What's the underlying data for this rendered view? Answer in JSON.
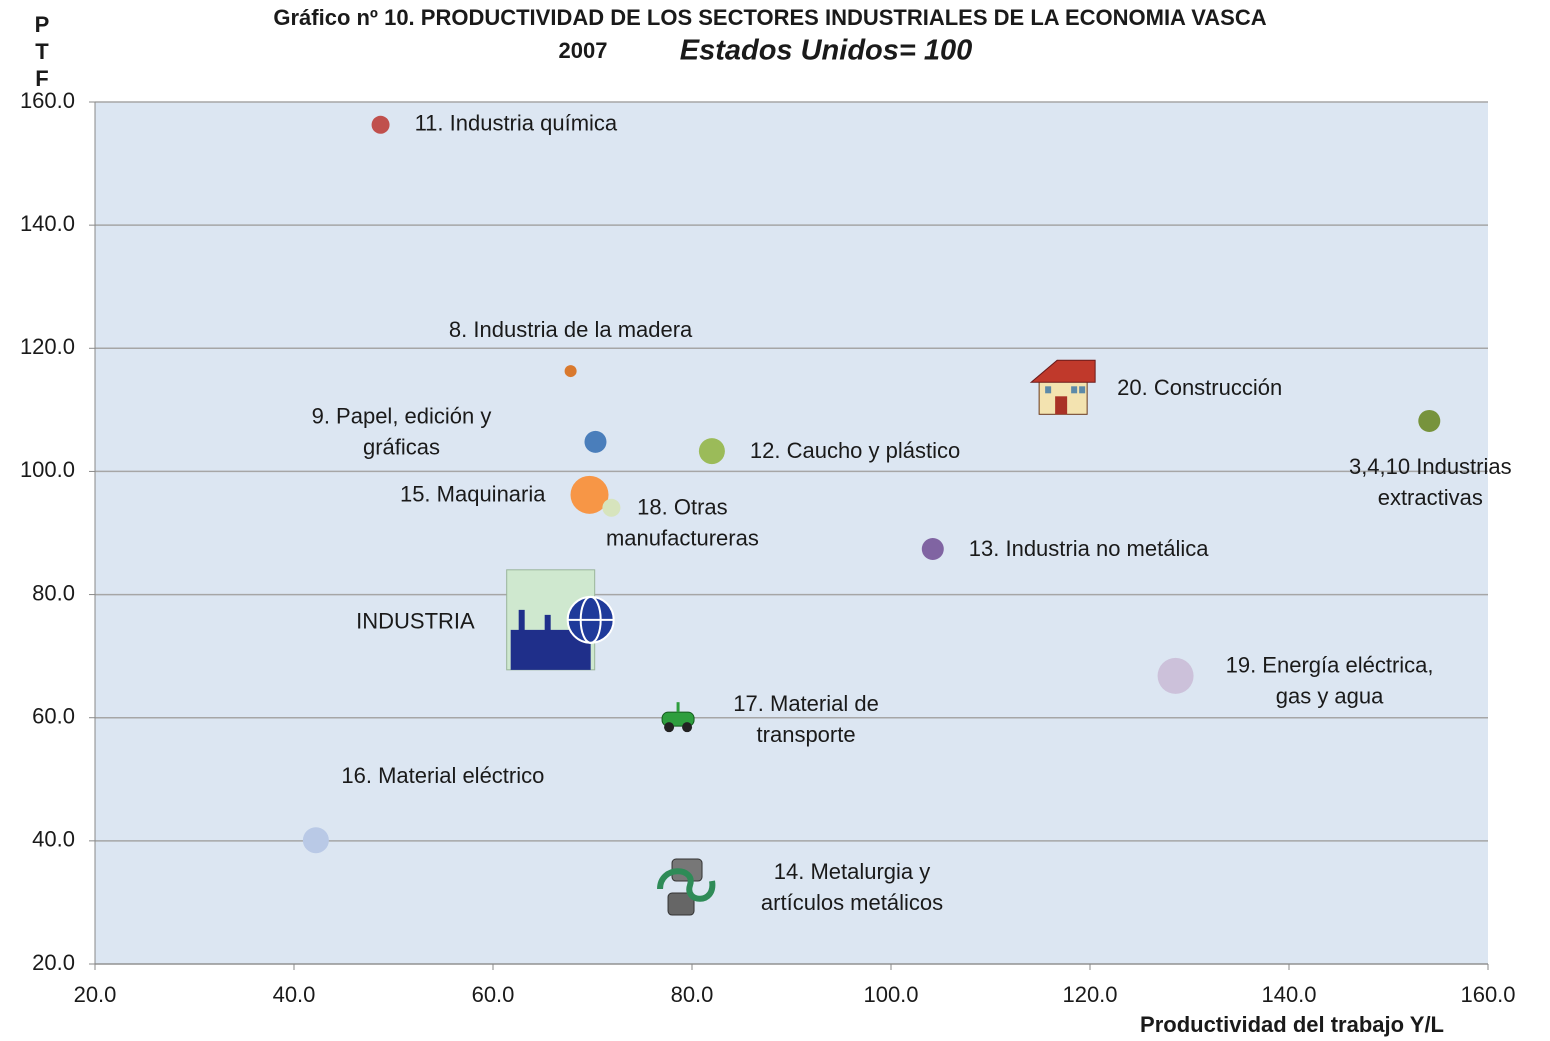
{
  "chart_data": {
    "type": "bubble",
    "title": "Gráfico nº 10. PRODUCTIVIDAD DE LOS SECTORES  INDUSTRIALES DE LA ECONOMIA VASCA",
    "year": "2007",
    "subtitle": "Estados Unidos= 100",
    "xlabel": "Productividad del trabajo Y/L",
    "ylabel": "PTF",
    "xlim": [
      20,
      160
    ],
    "ylim": [
      20,
      160
    ],
    "xticks": [
      {
        "value": 20,
        "label": "20.0"
      },
      {
        "value": 40,
        "label": "40.0"
      },
      {
        "value": 60,
        "label": "60.0"
      },
      {
        "value": 80,
        "label": "80.0"
      },
      {
        "value": 100,
        "label": "100.0"
      },
      {
        "value": 120,
        "label": "120.0"
      },
      {
        "value": 140,
        "label": "140.0"
      },
      {
        "value": 160,
        "label": "160.0"
      }
    ],
    "yticks": [
      {
        "value": 20,
        "label": "20.0"
      },
      {
        "value": 40,
        "label": "40.0"
      },
      {
        "value": 60,
        "label": "60.0"
      },
      {
        "value": 80,
        "label": "80.0"
      },
      {
        "value": 100,
        "label": "100.0"
      },
      {
        "value": 120,
        "label": "120.0"
      },
      {
        "value": 140,
        "label": "140.0"
      },
      {
        "value": 160,
        "label": "160.0"
      }
    ],
    "grid": true,
    "plot_background": "#dce6f2",
    "points": [
      {
        "label": [
          "11. Industria química"
        ],
        "x": 48.7,
        "y": 156.3,
        "size": 9,
        "color": "#c0504d"
      },
      {
        "label": [
          "8. Industria de la madera"
        ],
        "x": 67.8,
        "y": 116.3,
        "size": 6,
        "color": "#d9792e"
      },
      {
        "label": [
          "9. Papel, edición y",
          "gráficas"
        ],
        "x": 70.3,
        "y": 104.8,
        "size": 11,
        "color": "#4a7ebb"
      },
      {
        "label": [
          "12. Caucho y plástico"
        ],
        "x": 82.0,
        "y": 103.3,
        "size": 13,
        "color": "#9bbb59"
      },
      {
        "label": [
          "15. Maquinaria"
        ],
        "x": 69.7,
        "y": 96.2,
        "size": 19,
        "color": "#f79646"
      },
      {
        "label": [
          "18. Otras",
          "manufactureras"
        ],
        "x": 71.9,
        "y": 94.1,
        "size": 9,
        "color": "#d7e4bd"
      },
      {
        "label": [
          "13. Industria no metálica"
        ],
        "x": 104.2,
        "y": 87.4,
        "size": 11,
        "color": "#8064a2"
      },
      {
        "label": [
          "INDUSTRIA"
        ],
        "x": 66.2,
        "y": 75.9,
        "marker": "factory"
      },
      {
        "label": [
          "17. Material de",
          "transporte"
        ],
        "x": 78.6,
        "y": 59.6,
        "marker": "car"
      },
      {
        "label": [
          "16. Material eléctrico"
        ],
        "x": 42.2,
        "y": 40.1,
        "size": 13,
        "color": "#b9c9e6"
      },
      {
        "label": [
          "14. Metalurgia y",
          "artículos metálicos"
        ],
        "x": 79.4,
        "y": 32.5,
        "marker": "metal"
      },
      {
        "label": [
          "19. Energía eléctrica,",
          "gas y agua"
        ],
        "x": 128.6,
        "y": 66.8,
        "size": 18,
        "color": "#ccc1da"
      },
      {
        "label": [
          "20. Construcción"
        ],
        "x": 117.3,
        "y": 113.5,
        "marker": "house"
      },
      {
        "label": [
          "3,4,10  Industrias",
          "extractivas"
        ],
        "x": 154.1,
        "y": 108.2,
        "size": 11,
        "color": "#77933c"
      }
    ]
  }
}
